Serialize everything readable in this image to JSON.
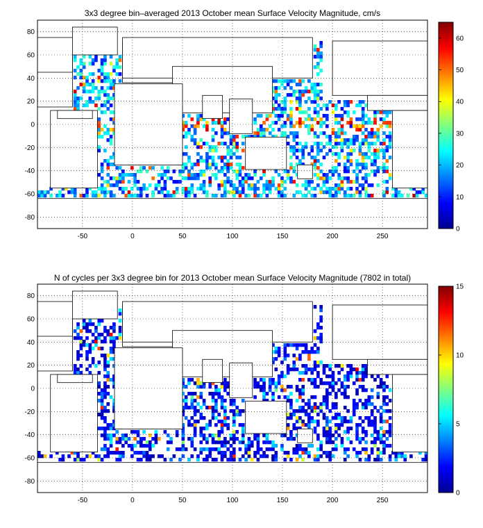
{
  "chart_data": [
    {
      "type": "heatmap",
      "title": "3x3 degree bin–averaged 2013 October mean Surface Velocity Magnitude, cm/s",
      "xlim": [
        -95,
        295
      ],
      "ylim": [
        -90,
        90
      ],
      "xticks": [
        -50,
        0,
        50,
        100,
        150,
        200,
        250
      ],
      "yticks": [
        -80,
        -60,
        -40,
        -20,
        0,
        20,
        40,
        60,
        80
      ],
      "grid": true,
      "colormap": "jet",
      "colorbar": {
        "min": 0,
        "max": 65,
        "ticks": [
          0,
          10,
          20,
          30,
          40,
          50,
          60
        ]
      },
      "bin_size_deg": 3
    },
    {
      "type": "heatmap",
      "title": "N of cycles per 3x3 degree bin for 2013 October mean Surface Velocity Magnitude (7802 in total)",
      "xlim": [
        -95,
        295
      ],
      "ylim": [
        -90,
        90
      ],
      "xticks": [
        -50,
        0,
        50,
        100,
        150,
        200,
        250
      ],
      "yticks": [
        -80,
        -60,
        -40,
        -20,
        0,
        20,
        40,
        60,
        80
      ],
      "grid": true,
      "colormap": "jet",
      "colorbar": {
        "min": 0,
        "max": 15,
        "ticks": [
          0,
          5,
          10,
          15
        ]
      },
      "bin_size_deg": 3
    }
  ],
  "colors": {
    "axes": "#000000",
    "land": "#ffffff",
    "jet_low": "#00008f",
    "jet_high": "#800000"
  }
}
